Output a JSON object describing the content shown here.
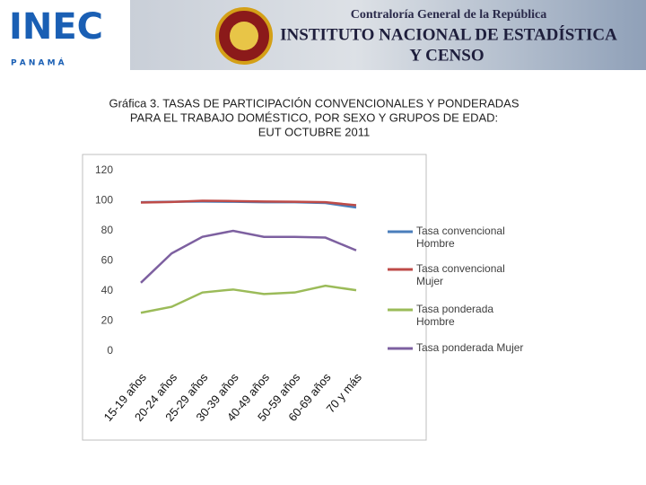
{
  "header": {
    "logo": "INEC",
    "logo_sub": "P A N A M Á",
    "office": "Contraloría General de la República",
    "institute": [
      "INSTITUTO NACIONAL DE ESTADÍSTICA",
      "Y CENSO"
    ]
  },
  "chart_data": {
    "type": "line",
    "title": [
      "Gráfica 3. TASAS DE PARTICIPACIÓN CONVENCIONALES Y PONDERADAS",
      "PARA EL TRABAJO DOMÉSTICO, POR SEXO Y GRUPOS DE EDAD:",
      "EUT OCTUBRE 2011"
    ],
    "categories": [
      "15-19 años",
      "20-24 años",
      "25-29 años",
      "30-39 años",
      "40-49 años",
      "50-59 años",
      "60-69 años",
      "70 y más"
    ],
    "series": [
      {
        "name": "Tasa convencional Hombre",
        "color": "#4a7ebb",
        "values": [
          99,
          99.3,
          99.5,
          99.3,
          99,
          99,
          98.5,
          95.5
        ]
      },
      {
        "name": "Tasa convencional  Mujer",
        "color": "#be4b48",
        "values": [
          98.8,
          99.2,
          100,
          99.8,
          99.5,
          99.3,
          99,
          97
        ]
      },
      {
        "name": "Tasa ponderada  Hombre",
        "color": "#9bbb59",
        "values": [
          25.5,
          29.5,
          39,
          41,
          38,
          39,
          43.5,
          40.5
        ]
      },
      {
        "name": "Tasa ponderada  Mujer",
        "color": "#7d60a0",
        "values": [
          45.5,
          65,
          76,
          80,
          76,
          76,
          75.5,
          67
        ]
      }
    ],
    "ylim": [
      0,
      120
    ],
    "yticks": [
      0,
      20,
      40,
      60,
      80,
      100,
      120
    ]
  }
}
